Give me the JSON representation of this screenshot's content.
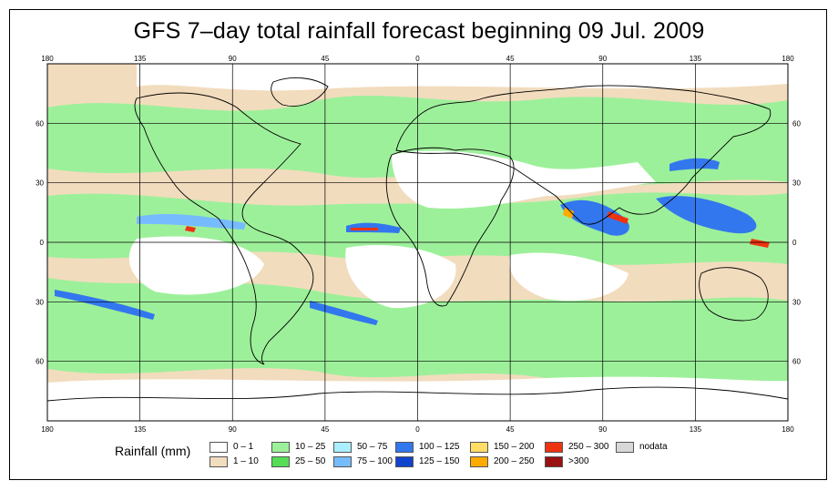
{
  "title": "GFS 7–day total rainfall forecast beginning 09 Jul. 2009",
  "axes": {
    "lon_ticks": [
      "180",
      "135",
      "90",
      "45",
      "0",
      "45",
      "90",
      "135",
      "180"
    ],
    "lat_ticks": [
      "60",
      "30",
      "0",
      "30",
      "60"
    ]
  },
  "legend": {
    "label": "Rainfall (mm)",
    "items": [
      {
        "text": "0 – 1",
        "color": "#ffffff"
      },
      {
        "text": "1 – 10",
        "color": "#f2dcbe"
      },
      {
        "text": "10 – 25",
        "color": "#9df09a"
      },
      {
        "text": "25 – 50",
        "color": "#55dd55"
      },
      {
        "text": "50 – 75",
        "color": "#aaeeff"
      },
      {
        "text": "75 – 100",
        "color": "#77bbff"
      },
      {
        "text": "100 – 125",
        "color": "#3377ee"
      },
      {
        "text": "125 – 150",
        "color": "#1144cc"
      },
      {
        "text": "150 – 200",
        "color": "#ffdd66"
      },
      {
        "text": "200 – 250",
        "color": "#ffaa00"
      },
      {
        "text": "250 – 300",
        "color": "#ee3311"
      },
      {
        "text": ">300",
        "color": "#991111"
      },
      {
        "text": "nodata",
        "color": "#d8d8d8"
      }
    ]
  }
}
